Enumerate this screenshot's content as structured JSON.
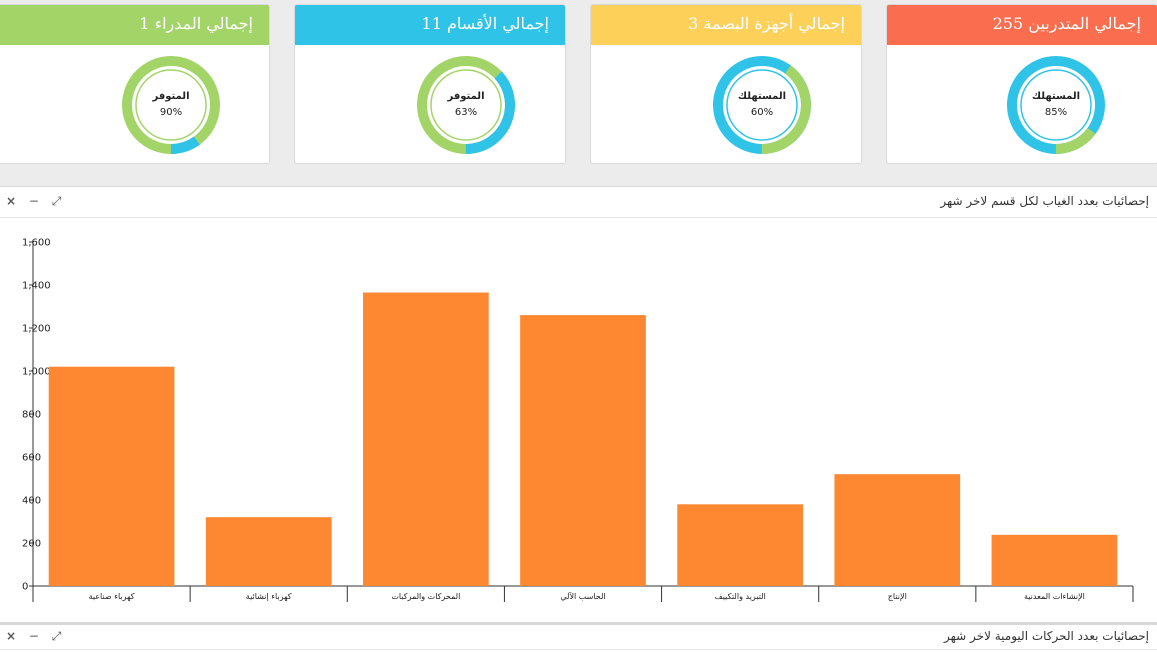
{
  "cards": [
    {
      "title": "إجمالي المدراء 1",
      "header_color": "#a3d468",
      "ring_color": "#a3d468",
      "accent_color": "#2fc3e8",
      "label": "المتوفر",
      "percent_text": "90%",
      "percent": 90
    },
    {
      "title": "إجمالي الأقسام 11",
      "header_color": "#2fc3e8",
      "ring_color": "#a3d468",
      "accent_color": "#2fc3e8",
      "label": "المتوفر",
      "percent_text": "63%",
      "percent": 63
    },
    {
      "title": "إجمالي أجهزة البصمة 3",
      "header_color": "#fdd05a",
      "ring_color": "#2fc3e8",
      "accent_color": "#a3d468",
      "label": "المستهلك",
      "percent_text": "60%",
      "percent": 60
    },
    {
      "title": "إجمالي المتدربين 255",
      "header_color": "#fa6e4f",
      "ring_color": "#2fc3e8",
      "accent_color": "#a3d468",
      "label": "المستهلك",
      "percent_text": "85%",
      "percent": 85
    }
  ],
  "panel1": {
    "title": "إحصائيات بعدد الغياب لكل قسم لاخر شهر",
    "tools": {
      "close": "×",
      "minimize": "−",
      "expand": "⤢"
    }
  },
  "panel2": {
    "title": "إحصائيات بعدد الحركات اليومية لاخر شهر",
    "tools": {
      "close": "×",
      "minimize": "−",
      "expand": "⤢"
    }
  },
  "chart_data": {
    "type": "bar",
    "title": "إحصائيات بعدد الغياب لكل قسم لاخر شهر",
    "xlabel": "",
    "ylabel": "",
    "categories": [
      "كهرباء صناعية",
      "كهرباء إنشائية",
      "المحركات والمركبات",
      "الحاسب الآلي",
      "التبريد والتكييف",
      "الإنتاج",
      "الإنشاءات المعدنية"
    ],
    "values": [
      1020,
      320,
      1365,
      1260,
      380,
      520,
      238
    ],
    "ylim": [
      0,
      1600
    ],
    "yticks": [
      0,
      200,
      400,
      600,
      800,
      1000,
      1200,
      1400,
      1600
    ],
    "ytick_labels": [
      "0",
      "200",
      "400",
      "600",
      "800",
      "1,000",
      "1,200",
      "1,400",
      "1,600"
    ],
    "bar_color": "#fe8732",
    "grid": false
  }
}
